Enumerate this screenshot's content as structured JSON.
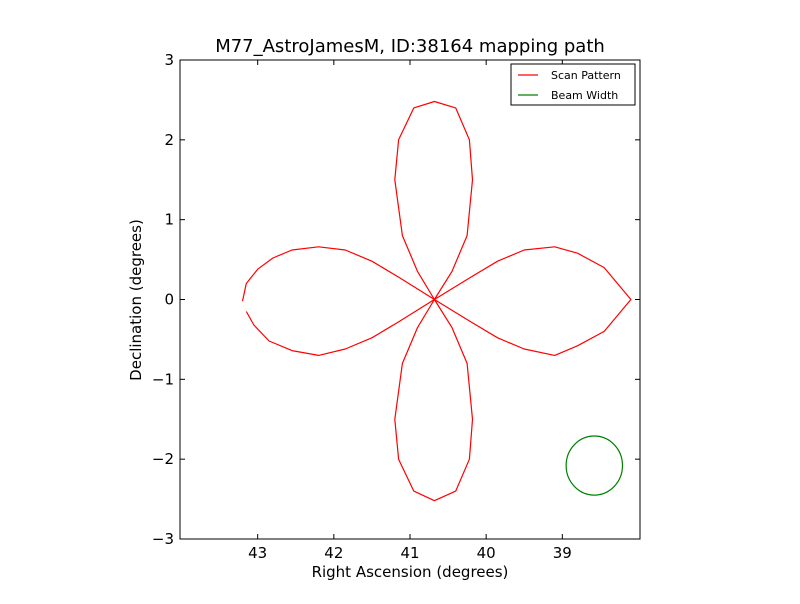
{
  "chart_data": {
    "type": "line",
    "title": "M77_AstroJamesM, ID:38164 mapping path",
    "xlabel": "Right Ascension (degrees)",
    "ylabel": "Declination (degrees)",
    "xlim": [
      43.0,
      38.0
    ],
    "xlim_note": "",
    "x_range": [
      44.02,
      37.98
    ],
    "ylim": [
      -3,
      3
    ],
    "x_ticks": [
      {
        "value": 43,
        "label": "43"
      },
      {
        "value": 42,
        "label": "42"
      },
      {
        "value": 41,
        "label": "41"
      },
      {
        "value": 40,
        "label": "40"
      },
      {
        "value": 39,
        "label": "39"
      }
    ],
    "y_ticks": [
      {
        "value": 3,
        "label": "3"
      },
      {
        "value": 2,
        "label": "2"
      },
      {
        "value": 1,
        "label": "1"
      },
      {
        "value": 0,
        "label": "0"
      },
      {
        "value": -1,
        "label": "−1"
      },
      {
        "value": -2,
        "label": "−2"
      },
      {
        "value": -3,
        "label": "−3"
      }
    ],
    "grid": false,
    "legend_position": "top-right",
    "series": [
      {
        "name": "Scan Pattern",
        "color": "#ff0000",
        "shape": "four-petal rose curve",
        "center": [
          40.68,
          0.0
        ],
        "petal_reach": 2.5,
        "points": [
          [
            43.2,
            -0.02
          ],
          [
            43.15,
            0.2
          ],
          [
            43.0,
            0.38
          ],
          [
            42.8,
            0.52
          ],
          [
            42.55,
            0.62
          ],
          [
            42.2,
            0.66
          ],
          [
            41.85,
            0.62
          ],
          [
            41.5,
            0.48
          ],
          [
            41.15,
            0.28
          ],
          [
            40.68,
            0.0
          ],
          [
            40.9,
            0.35
          ],
          [
            41.1,
            0.8
          ],
          [
            41.2,
            1.5
          ],
          [
            41.15,
            2.0
          ],
          [
            40.95,
            2.4
          ],
          [
            40.68,
            2.48
          ],
          [
            40.4,
            2.4
          ],
          [
            40.22,
            2.0
          ],
          [
            40.18,
            1.5
          ],
          [
            40.25,
            0.8
          ],
          [
            40.45,
            0.35
          ],
          [
            40.68,
            0.0
          ],
          [
            40.2,
            0.28
          ],
          [
            39.85,
            0.48
          ],
          [
            39.5,
            0.62
          ],
          [
            39.1,
            0.66
          ],
          [
            38.8,
            0.58
          ],
          [
            38.45,
            0.4
          ],
          [
            38.1,
            0.0
          ],
          [
            38.45,
            -0.4
          ],
          [
            38.8,
            -0.58
          ],
          [
            39.1,
            -0.7
          ],
          [
            39.5,
            -0.62
          ],
          [
            39.85,
            -0.48
          ],
          [
            40.2,
            -0.28
          ],
          [
            40.68,
            0.0
          ],
          [
            40.45,
            -0.35
          ],
          [
            40.25,
            -0.8
          ],
          [
            40.18,
            -1.5
          ],
          [
            40.22,
            -2.0
          ],
          [
            40.4,
            -2.4
          ],
          [
            40.68,
            -2.52
          ],
          [
            40.95,
            -2.4
          ],
          [
            41.15,
            -2.0
          ],
          [
            41.2,
            -1.5
          ],
          [
            41.1,
            -0.8
          ],
          [
            40.9,
            -0.35
          ],
          [
            40.68,
            0.0
          ],
          [
            41.15,
            -0.28
          ],
          [
            41.5,
            -0.48
          ],
          [
            41.85,
            -0.62
          ],
          [
            42.2,
            -0.7
          ],
          [
            42.55,
            -0.64
          ],
          [
            42.85,
            -0.52
          ],
          [
            43.05,
            -0.32
          ],
          [
            43.15,
            -0.15
          ]
        ]
      },
      {
        "name": "Beam Width",
        "color": "#008000",
        "shape": "circle",
        "center": [
          38.58,
          -2.08
        ],
        "radius": 0.37
      }
    ]
  }
}
